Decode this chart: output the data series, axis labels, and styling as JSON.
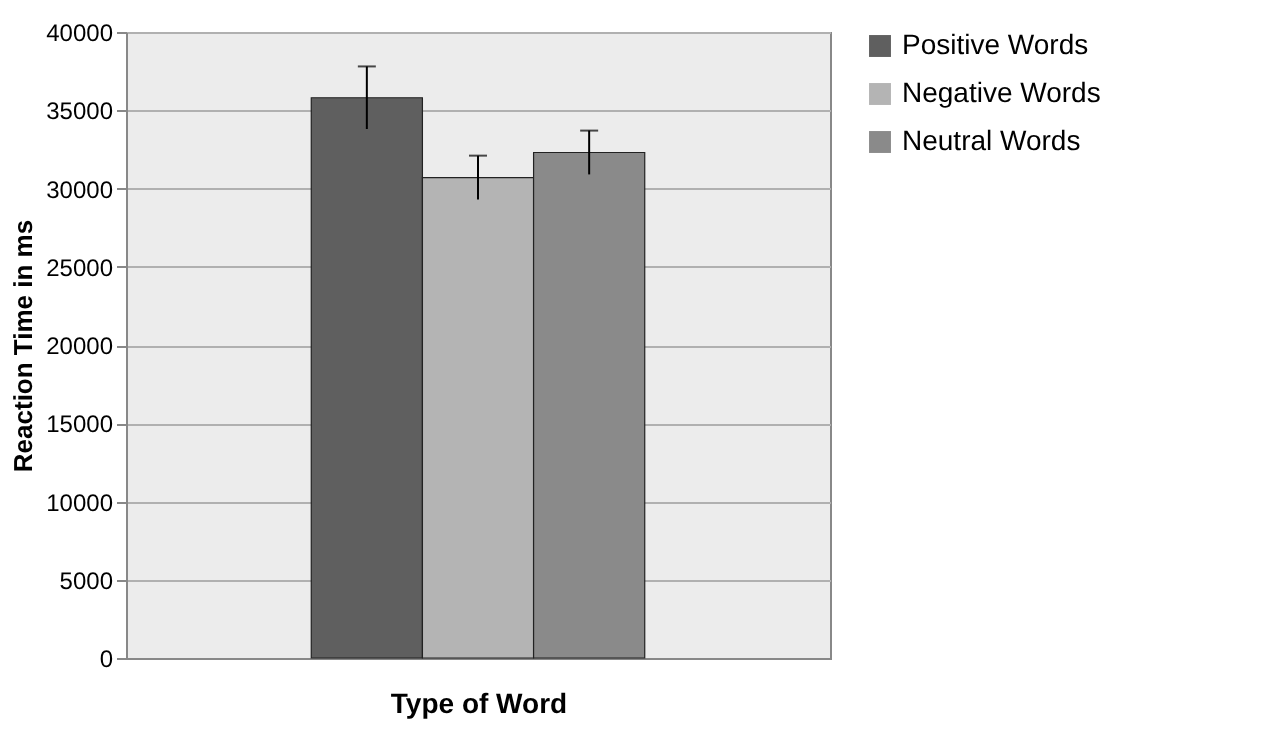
{
  "chart_data": {
    "type": "bar",
    "xlabel": "Type of Word",
    "ylabel": "Reaction Time in ms",
    "categories": [
      null
    ],
    "series": [
      {
        "name": "Positive Words",
        "color": "#5f5f5f",
        "values": [
          35800
        ],
        "errors": [
          2000
        ]
      },
      {
        "name": "Negative Words",
        "color": "#b4b4b4",
        "values": [
          30700
        ],
        "errors": [
          1400
        ]
      },
      {
        "name": "Neutral Words",
        "color": "#8a8a8a",
        "values": [
          32300
        ],
        "errors": [
          1400
        ]
      }
    ],
    "ylim": [
      0,
      40000
    ],
    "yticks": [
      0,
      5000,
      10000,
      15000,
      20000,
      25000,
      30000,
      35000,
      40000
    ],
    "grid": "y",
    "legend": "right"
  }
}
